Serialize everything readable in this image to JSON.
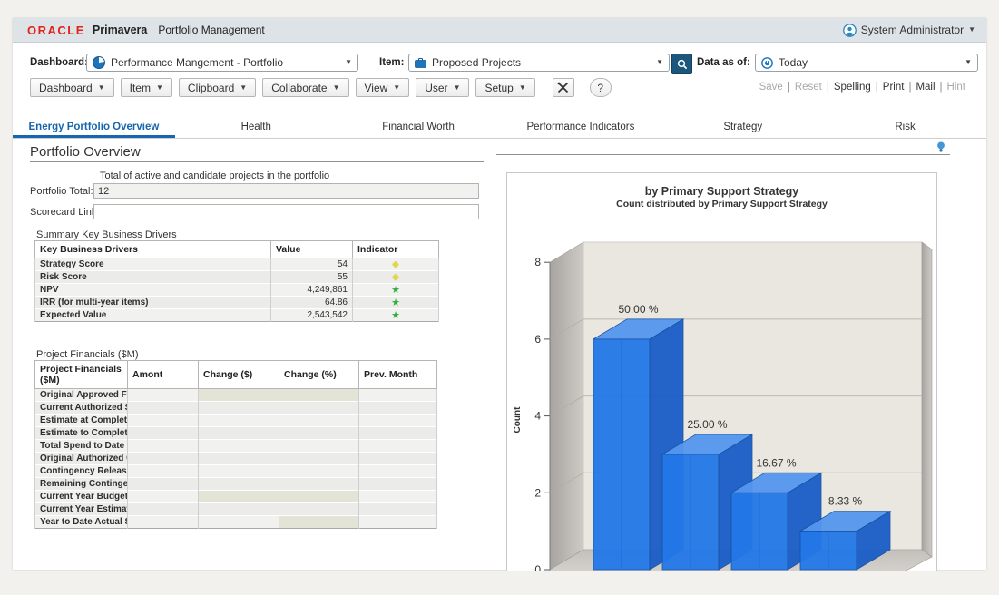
{
  "header": {
    "brand_oracle": "ORACLE",
    "brand_primavera": "Primavera",
    "app_title": "Portfolio Management",
    "user_name": "System Administrator",
    "oracle_red": "#e2231a"
  },
  "filters": {
    "dashboard_label": "Dashboard:",
    "dashboard_value": "Performance Mangement - Portfolio",
    "item_label": "Item:",
    "item_value": "Proposed Projects",
    "data_as_of_label": "Data as of:",
    "data_as_of_value": "Today"
  },
  "menubar": {
    "buttons": [
      "Dashboard",
      "Item",
      "Clipboard",
      "Collaborate",
      "View",
      "User",
      "Setup"
    ],
    "actions": [
      {
        "label": "Save",
        "enabled": false
      },
      {
        "label": "Reset",
        "enabled": false
      },
      {
        "label": "Spelling",
        "enabled": true
      },
      {
        "label": "Print",
        "enabled": true
      },
      {
        "label": "Mail",
        "enabled": true
      },
      {
        "label": "Hint",
        "enabled": false
      }
    ]
  },
  "tabs": [
    {
      "label": "Energy Portfolio Overview",
      "active": true
    },
    {
      "label": "Health",
      "active": false
    },
    {
      "label": "Financial Worth",
      "active": false
    },
    {
      "label": "Performance Indicators",
      "active": false
    },
    {
      "label": "Strategy",
      "active": false
    },
    {
      "label": "Risk",
      "active": false
    }
  ],
  "portfolio": {
    "section_title": "Portfolio Overview",
    "total_caption": "Total of active and candidate projects in the portfolio",
    "total_label": "Portfolio Total:",
    "total_value": "12",
    "scorecard_label": "Scorecard Link:",
    "scorecard_value": ""
  },
  "key_drivers": {
    "section_label": "Summary Key Business Drivers",
    "columns": [
      "Key Business Drivers",
      "Value",
      "Indicator"
    ],
    "rows": [
      {
        "name": "Strategy Score",
        "value": "54",
        "indicator": "yellow-diamond"
      },
      {
        "name": "Risk Score",
        "value": "55",
        "indicator": "yellow-diamond"
      },
      {
        "name": "NPV",
        "value": "4,249,861",
        "indicator": "green-star"
      },
      {
        "name": "IRR (for multi-year items)",
        "value": "64.86",
        "indicator": "green-star"
      },
      {
        "name": "Expected Value",
        "value": "2,543,542",
        "indicator": "green-star"
      }
    ],
    "indicator_colors": {
      "yellow-diamond": "#e9d92f",
      "green-star": "#2fae3f"
    }
  },
  "financials": {
    "section_label": "Project Financials ($M)",
    "columns": [
      "Project Financials ($M)",
      "Amont",
      "Change ($)",
      "Change (%)",
      "Prev. Month"
    ],
    "rows": [
      {
        "name": "Original Approved Fun...",
        "highlight": [
          1,
          2
        ]
      },
      {
        "name": "Current Authorized Spe...",
        "highlight": []
      },
      {
        "name": "Estimate at Completion...",
        "highlight": []
      },
      {
        "name": "Estimate to Complete (...",
        "highlight": []
      },
      {
        "name": "Total Spend to Date",
        "highlight": []
      },
      {
        "name": "Original Authorized Co...",
        "highlight": []
      },
      {
        "name": "Contingency Released",
        "highlight": []
      },
      {
        "name": "Remaining Contingency",
        "highlight": []
      },
      {
        "name": "Current Year Budget",
        "highlight": [
          1,
          2
        ]
      },
      {
        "name": "Current Year Estimated...",
        "highlight": []
      },
      {
        "name": "Year to Date Actual Spe...",
        "highlight": [
          2
        ]
      }
    ]
  },
  "chart_data": {
    "type": "bar",
    "projection": "3d",
    "title": "by Primary Support Strategy",
    "subtitle": "Count distributed by Primary Support Strategy",
    "ylabel": "Count",
    "ylim": [
      0,
      8
    ],
    "yticks": [
      0,
      2,
      4,
      6,
      8
    ],
    "values": [
      6,
      3,
      2,
      1
    ],
    "bar_labels": [
      "50.00 %",
      "25.00 %",
      "16.67 %",
      "8.33 %"
    ],
    "bar_color": "#2378e8",
    "bar_top_color": "#5596ef",
    "bar_side_color": "#1a5dc8",
    "wall_color": "#eae7e1",
    "grid_color": "#bcb9b4",
    "legend": "none"
  }
}
